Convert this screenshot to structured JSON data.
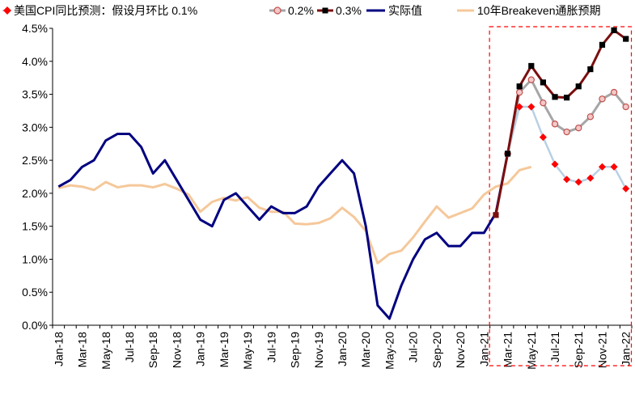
{
  "chart_data": {
    "type": "line",
    "title": "",
    "xlabel": "",
    "ylabel": "",
    "ylim": [
      0,
      4.5
    ],
    "y_ticks": [
      "0.0%",
      "0.5%",
      "1.0%",
      "1.5%",
      "2.0%",
      "2.5%",
      "3.0%",
      "3.5%",
      "4.0%",
      "4.5%"
    ],
    "y_tick_values": [
      0,
      0.5,
      1.0,
      1.5,
      2.0,
      2.5,
      3.0,
      3.5,
      4.0,
      4.5
    ],
    "x_tick_labels": [
      "Jan-18",
      "Mar-18",
      "May-18",
      "Jul-18",
      "Sep-18",
      "Nov-18",
      "Jan-19",
      "Mar-19",
      "May-19",
      "Jul-19",
      "Sep-19",
      "Nov-19",
      "Jan-20",
      "Mar-20",
      "May-20",
      "Jul-20",
      "Sep-20",
      "Nov-20",
      "Jan-21",
      "Mar-21",
      "May-21",
      "Jul-21",
      "Sep-21",
      "Nov-21",
      "Jan-22"
    ],
    "months_total": 49,
    "legend": [
      {
        "name": "美国CPI同比预测：假设月环比 0.1%",
        "color": "#b8d0e4",
        "marker_color": "#ff0000",
        "marker": "diamond"
      },
      {
        "name": "0.2%",
        "color": "#a6a6a6",
        "marker_color": "#c0504d",
        "marker": "circle"
      },
      {
        "name": "0.3%",
        "color": "#7b0f0f",
        "marker_color": "#000000",
        "marker": "square"
      },
      {
        "name": "实际值",
        "color": "#000080",
        "marker": "none"
      },
      {
        "name": "10年Breakeven通胀预期",
        "color": "#f5c89a",
        "marker": "none"
      }
    ],
    "series": [
      {
        "name": "实际值",
        "start_index": 0,
        "values": [
          2.1,
          2.2,
          2.4,
          2.5,
          2.8,
          2.9,
          2.9,
          2.7,
          2.3,
          2.5,
          2.2,
          1.9,
          1.6,
          1.5,
          1.9,
          2.0,
          1.8,
          1.6,
          1.8,
          1.7,
          1.7,
          1.8,
          2.1,
          2.3,
          2.5,
          2.3,
          1.5,
          0.3,
          0.1,
          0.6,
          1.0,
          1.3,
          1.4,
          1.2,
          1.2,
          1.4,
          1.4,
          1.7,
          2.6
        ]
      },
      {
        "name": "10年Breakeven通胀预期",
        "start_index": 0,
        "values": [
          2.08,
          2.12,
          2.1,
          2.05,
          2.17,
          2.09,
          2.12,
          2.12,
          2.09,
          2.14,
          2.07,
          1.98,
          1.72,
          1.87,
          1.93,
          1.89,
          1.94,
          1.78,
          1.72,
          1.72,
          1.54,
          1.53,
          1.55,
          1.62,
          1.78,
          1.64,
          1.43,
          0.94,
          1.08,
          1.13,
          1.33,
          1.57,
          1.8,
          1.63,
          1.7,
          1.77,
          1.98,
          2.1,
          2.15,
          2.35,
          2.4
        ]
      },
      {
        "name": "0.1%",
        "start_index": 38,
        "values": [
          2.6,
          3.31,
          3.31,
          2.85,
          2.44,
          2.21,
          2.17,
          2.23,
          2.4,
          2.4,
          2.07
        ]
      },
      {
        "name": "0.2%",
        "start_index": 38,
        "values": [
          2.6,
          3.53,
          3.72,
          3.37,
          3.05,
          2.93,
          2.99,
          3.16,
          3.43,
          3.53,
          3.31
        ]
      },
      {
        "name": "0.3%",
        "start_index": 38,
        "values": [
          2.6,
          3.62,
          3.93,
          3.68,
          3.46,
          3.45,
          3.62,
          3.88,
          4.25,
          4.47,
          4.34
        ]
      }
    ],
    "joins": [
      {
        "from_index": 37,
        "from_value": 1.67,
        "to_index": 38,
        "to_value": 2.6
      }
    ],
    "start_marker": {
      "index": 37,
      "value": 1.67,
      "marker": "square",
      "color": "#7b0f0f"
    },
    "highlight_box": {
      "from_index": 37,
      "to_index": 49,
      "style": "dashed",
      "color": "#ff0000"
    }
  }
}
